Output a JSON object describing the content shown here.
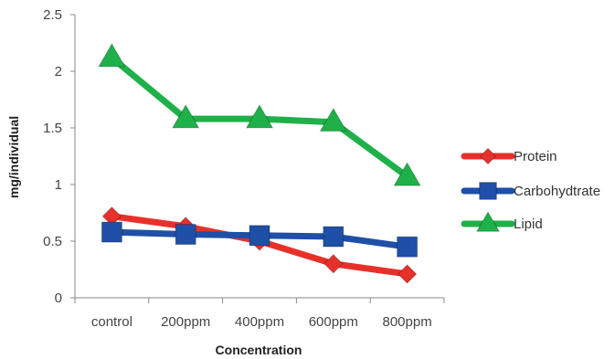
{
  "chart_data": {
    "type": "line",
    "categories": [
      "control",
      "200ppm",
      "400ppm",
      "600ppm",
      "800ppm"
    ],
    "xlabel": "Concentration",
    "ylabel": "mg/individual",
    "ylim": [
      0,
      2.5
    ],
    "yticks": [
      "0",
      "0.5",
      "1",
      "1.5",
      "2",
      "2.5"
    ],
    "grid": false,
    "legend": "right",
    "series": [
      {
        "name": "Protein",
        "values": [
          0.72,
          0.63,
          0.5,
          0.3,
          0.21
        ],
        "color": "#e8302a",
        "marker": "diamond"
      },
      {
        "name": "Carbohydtrate",
        "values": [
          0.58,
          0.56,
          0.55,
          0.54,
          0.45
        ],
        "color": "#1f4fa6",
        "marker": "square"
      },
      {
        "name": "Lipid",
        "values": [
          2.12,
          1.58,
          1.58,
          1.55,
          1.07
        ],
        "color": "#1fb04a",
        "marker": "triangle"
      }
    ]
  }
}
